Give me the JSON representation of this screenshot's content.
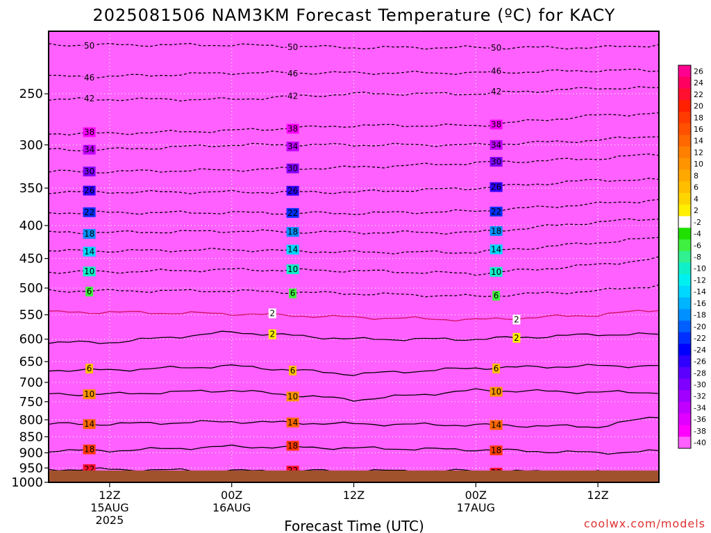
{
  "chart_data": {
    "type": "heatmap",
    "title": "2025081506 NAM3KM Forecast Temperature (ºC) for KACY",
    "xlabel": "Forecast Time (UTC)",
    "ylabel": "",
    "y_scale": "log-pressure",
    "ylim": [
      1000,
      200
    ],
    "xlim_hours_from_run": [
      0,
      60
    ],
    "y_ticks": [
      "250",
      "300",
      "350",
      "400",
      "450",
      "500",
      "550",
      "600",
      "650",
      "700",
      "750",
      "800",
      "850",
      "900",
      "950",
      "1000"
    ],
    "x_ticks": [
      {
        "hour": 6,
        "label1": "12Z",
        "label2": "15AUG",
        "label3": "2025"
      },
      {
        "hour": 18,
        "label1": "00Z",
        "label2": "16AUG",
        "label3": ""
      },
      {
        "hour": 30,
        "label1": "12Z",
        "label2": "",
        "label3": ""
      },
      {
        "hour": 42,
        "label1": "00Z",
        "label2": "17AUG",
        "label3": ""
      },
      {
        "hour": 54,
        "label1": "12Z",
        "label2": "",
        "label3": ""
      }
    ],
    "grid": true,
    "legend_placement": "right",
    "colorbar": {
      "labels": [
        "26",
        "24",
        "22",
        "20",
        "18",
        "16",
        "14",
        "12",
        "10",
        "8",
        "6",
        "4",
        "2",
        "-2",
        "-4",
        "-6",
        "-8",
        "-10",
        "-12",
        "-14",
        "-16",
        "-18",
        "-20",
        "-22",
        "-24",
        "-26",
        "-28",
        "-30",
        "-32",
        "-34",
        "-36",
        "-38",
        "-40"
      ],
      "colors": [
        "#ff0090",
        "#ff0060",
        "#ff1030",
        "#ff2000",
        "#ff3a00",
        "#ff5000",
        "#ff6800",
        "#ff8000",
        "#ff9400",
        "#ffa800",
        "#ffbe00",
        "#ffd500",
        "#ffef00",
        "#ffffff",
        "#20e000",
        "#40f040",
        "#30f090",
        "#10f0c8",
        "#00f0f0",
        "#00d8ff",
        "#00b4ff",
        "#0090ff",
        "#0060ff",
        "#0030ff",
        "#0000ff",
        "#3000ff",
        "#5a00ff",
        "#8000ff",
        "#a000ff",
        "#c000ff",
        "#e000ff",
        "#ff00ff",
        "#ff60ff"
      ]
    },
    "isotherms_c": {
      "values": [
        22,
        18,
        14,
        10,
        6,
        2,
        -2,
        -6,
        -10,
        -14,
        -18,
        -22,
        -26,
        -30,
        -34,
        -38,
        -42,
        -46,
        -50
      ],
      "labels": [
        "22",
        "18",
        "14",
        "10",
        "6",
        "2",
        "2",
        "6",
        "10",
        "14",
        "18",
        "22",
        "26",
        "30",
        "34",
        "38",
        "42",
        "46",
        "50"
      ],
      "pressure_at_6h": [
        955,
        893,
        812,
        730,
        670,
        607,
        545,
        505,
        472,
        438,
        410,
        382,
        355,
        330,
        305,
        288,
        255,
        235,
        210
      ],
      "pressure_at_18h": [
        960,
        880,
        805,
        720,
        660,
        585,
        548,
        505,
        468,
        436,
        408,
        382,
        355,
        328,
        300,
        285,
        255,
        232,
        210
      ],
      "pressure_at_30h": [
        960,
        885,
        812,
        745,
        680,
        600,
        555,
        510,
        470,
        440,
        410,
        383,
        355,
        325,
        300,
        280,
        250,
        232,
        212
      ],
      "pressure_at_42h": [
        960,
        890,
        815,
        720,
        665,
        600,
        560,
        515,
        475,
        440,
        410,
        380,
        350,
        320,
        300,
        280,
        250,
        232,
        212
      ],
      "pressure_at_54h": [
        965,
        900,
        820,
        725,
        660,
        590,
        550,
        505,
        460,
        425,
        395,
        370,
        340,
        315,
        295,
        270,
        245,
        230,
        212
      ],
      "pressure_at_60h": [
        965,
        895,
        790,
        725,
        660,
        590,
        540,
        495,
        450,
        418,
        390,
        365,
        340,
        310,
        290,
        268,
        245,
        230,
        210
      ]
    }
  },
  "credit": "coolwx.com/models"
}
